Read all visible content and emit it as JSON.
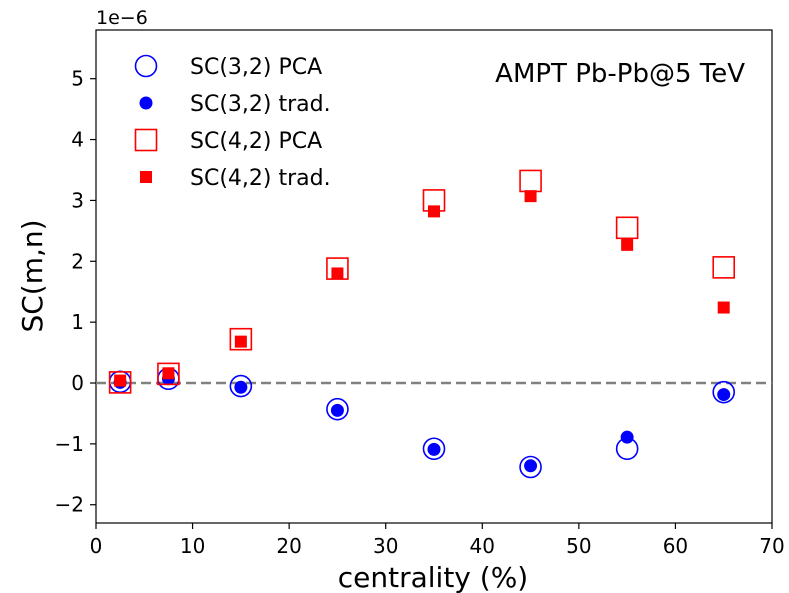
{
  "chart_data": {
    "type": "scatter",
    "annotation": "AMPT Pb-Pb@5 TeV",
    "xlabel": "centrality (%)",
    "ylabel": "SC(m,n)",
    "y_offset_label": "1e−6",
    "xlim": [
      0,
      70
    ],
    "ylim": [
      -2.3,
      5.8
    ],
    "xticks": [
      0,
      10,
      20,
      30,
      40,
      50,
      60,
      70
    ],
    "yticks": [
      -2,
      -1,
      0,
      1,
      2,
      3,
      4,
      5
    ],
    "legend_position": "upper-left",
    "reference_line": {
      "y": 0,
      "style": "dashed",
      "color": "#808080"
    },
    "series": [
      {
        "name": "SC(3,2) PCA",
        "marker": "open-circle",
        "color": "#0000ff",
        "x": [
          2.5,
          7.5,
          15,
          25,
          35,
          45,
          55,
          65
        ],
        "y": [
          0.02,
          0.07,
          -0.05,
          -0.43,
          -1.08,
          -1.38,
          -1.08,
          -0.15
        ]
      },
      {
        "name": "SC(3,2) trad.",
        "marker": "filled-circle",
        "color": "#0000ff",
        "x": [
          2.5,
          7.5,
          15,
          25,
          35,
          45,
          55,
          65
        ],
        "y": [
          0.01,
          0.07,
          -0.07,
          -0.45,
          -1.09,
          -1.36,
          -0.89,
          -0.19
        ]
      },
      {
        "name": "SC(4,2) PCA",
        "marker": "open-square",
        "color": "#ff0000",
        "x": [
          2.5,
          7.5,
          15,
          25,
          35,
          45,
          55,
          65
        ],
        "y": [
          0.01,
          0.15,
          0.72,
          1.88,
          3.0,
          3.32,
          2.55,
          1.9
        ]
      },
      {
        "name": "SC(4,2) trad.",
        "marker": "filled-square",
        "color": "#ff0000",
        "x": [
          2.5,
          7.5,
          15,
          25,
          35,
          45,
          55,
          65
        ],
        "y": [
          0.04,
          0.16,
          0.68,
          1.8,
          2.82,
          3.07,
          2.27,
          1.24
        ]
      }
    ]
  }
}
